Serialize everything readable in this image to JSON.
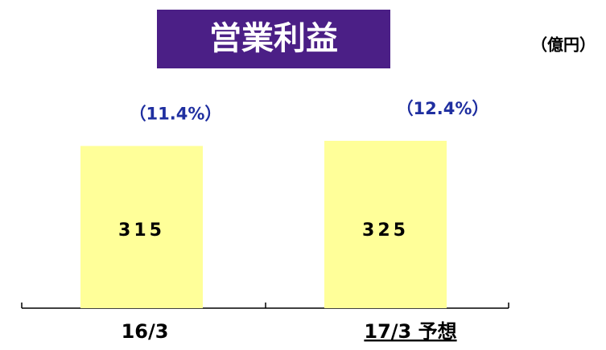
{
  "chart_data": {
    "type": "bar",
    "title": "営業利益",
    "unit": "（億円）",
    "categories": [
      "16/3",
      "17/3 予想"
    ],
    "values": [
      315,
      325
    ],
    "annotations": [
      "（11.4%）",
      "（12.4%）"
    ],
    "color": "#ffff99",
    "title_color": "#4b1f86",
    "annotation_color": "#1f2fa0"
  }
}
